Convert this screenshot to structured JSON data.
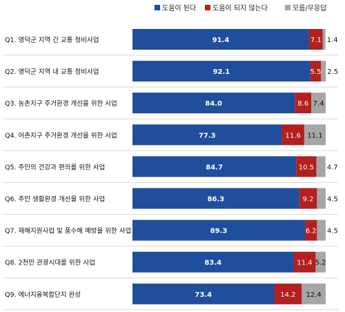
{
  "chart_data": {
    "type": "bar",
    "orientation": "horizontal",
    "stacked": true,
    "legend_position": "top-right",
    "categories": [
      "Q1. 영덕군 지역 간 교통 정비사업",
      "Q2. 영덕군 지역 내 교통 정비사업",
      "Q3. 농촌지구 주거환경 개선을 위한 사업",
      "Q4. 어촌지구 주거환경 개선을 위한 사업",
      "Q5. 주민의 건강과 편의를 위한 사업",
      "Q6. 주민 생활환경 개선을 위한 사업",
      "Q7. 재해지원사업 및 풍수해 예방을 위한 사업",
      "Q8. 2천만 관광시대를 위한 사업",
      "Q9. 에너지융복합단지 완성"
    ],
    "series": [
      {
        "name": "도움이 된다",
        "color": "#1f4e9c",
        "values": [
          91.4,
          92.1,
          84.0,
          77.3,
          84.7,
          86.3,
          89.3,
          83.4,
          73.4
        ]
      },
      {
        "name": "도움이 되지 않는다",
        "color": "#b2201f",
        "values": [
          7.1,
          5.5,
          8.6,
          11.6,
          10.5,
          9.2,
          6.2,
          11.4,
          14.2
        ]
      },
      {
        "name": "모름/무응답",
        "color": "#a6a6a6",
        "values": [
          1.4,
          2.5,
          7.4,
          11.1,
          4.7,
          4.5,
          4.5,
          5.2,
          12.4
        ]
      }
    ],
    "value_labels": [
      [
        "91.4",
        "7.1",
        "1.4"
      ],
      [
        "92.1",
        "5.5",
        "2.5"
      ],
      [
        "84.0",
        "8.6",
        "7.4"
      ],
      [
        "77.3",
        "11.6",
        "11.1"
      ],
      [
        "84.7",
        "10.5",
        "4.7"
      ],
      [
        "86.3",
        "9.2",
        "4.5"
      ],
      [
        "89.3",
        "6.2",
        "4.5"
      ],
      [
        "83.4",
        "11.4",
        "5.2"
      ],
      [
        "73.4",
        "14.2",
        "12.4"
      ]
    ],
    "xlim": [
      0,
      100
    ],
    "grid": false
  }
}
